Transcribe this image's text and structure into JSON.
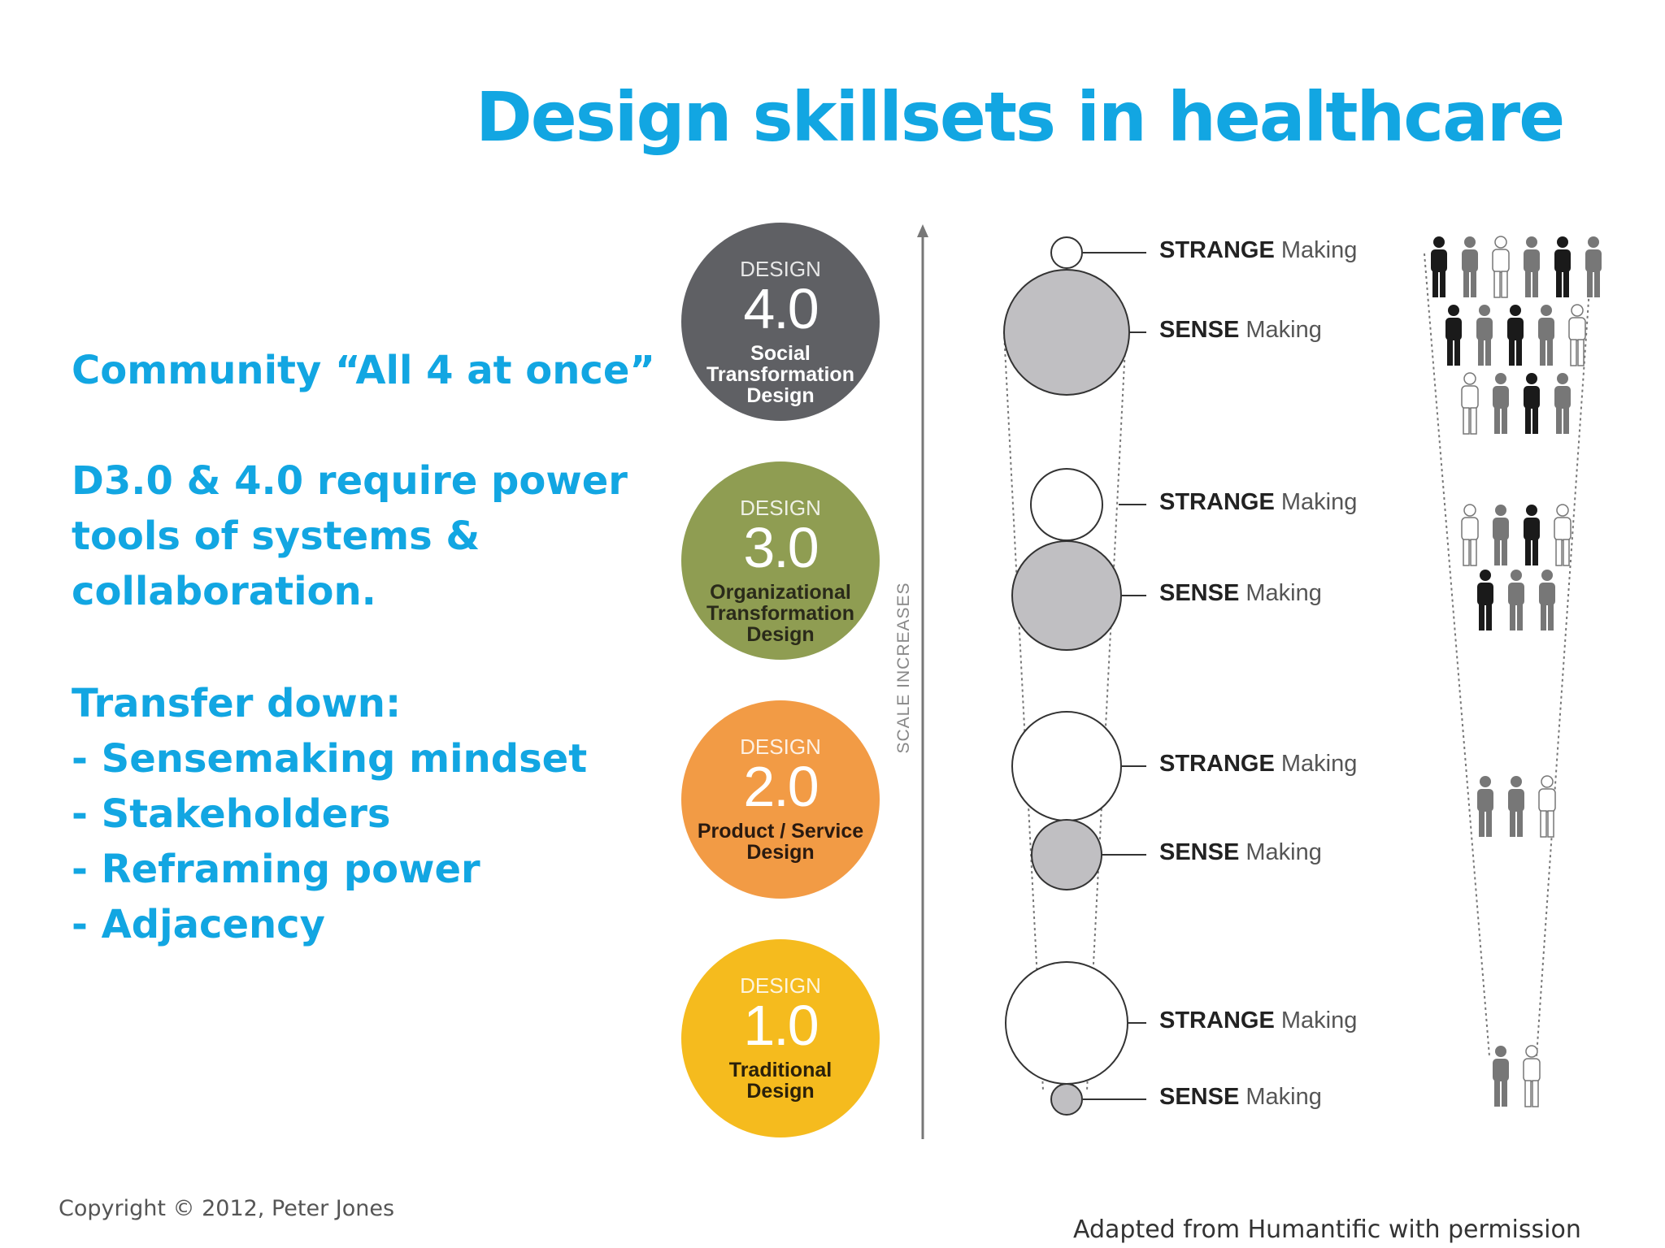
{
  "title": "Design skillsets in healthcare",
  "left_text": {
    "line1": "Community “All 4 at once”",
    "para2": [
      "D3.0 & 4.0 require power",
      "tools of systems &",
      "collaboration."
    ],
    "para3_head": "Transfer down:",
    "bullets": [
      "- Sensemaking mindset",
      "- Stakeholders",
      "- Reframing power",
      "- Adjacency"
    ]
  },
  "design_levels": [
    {
      "label": "DESIGN",
      "version": "4.0",
      "subtitle": [
        "Social",
        "Transformation",
        "Design"
      ],
      "color": "#5f6064"
    },
    {
      "label": "DESIGN",
      "version": "3.0",
      "subtitle": [
        "Organizational",
        "Transformation",
        "Design"
      ],
      "color": "#8f9d52"
    },
    {
      "label": "DESIGN",
      "version": "2.0",
      "subtitle": [
        "Product / Service",
        "Design"
      ],
      "color": "#f29b45"
    },
    {
      "label": "DESIGN",
      "version": "1.0",
      "subtitle": [
        "Traditional",
        "Design"
      ],
      "color": "#f5bb1e"
    }
  ],
  "axis_label": "SCALE INCREASES",
  "making_labels": [
    {
      "strong": "STRANGE",
      "rest": "Making"
    },
    {
      "strong": "SENSE",
      "rest": "Making"
    },
    {
      "strong": "STRANGE",
      "rest": "Making"
    },
    {
      "strong": "SENSE",
      "rest": "Making"
    },
    {
      "strong": "STRANGE",
      "rest": "Making"
    },
    {
      "strong": "SENSE",
      "rest": "Making"
    },
    {
      "strong": "STRANGE",
      "rest": "Making"
    },
    {
      "strong": "SENSE",
      "rest": "Making"
    }
  ],
  "footer": {
    "copyright": "Copyright © 2012, Peter Jones",
    "credit": "Adapted from Humantific with permission"
  },
  "colors": {
    "accent": "#12a6e2",
    "sense_fill": "#c0bfc2"
  }
}
